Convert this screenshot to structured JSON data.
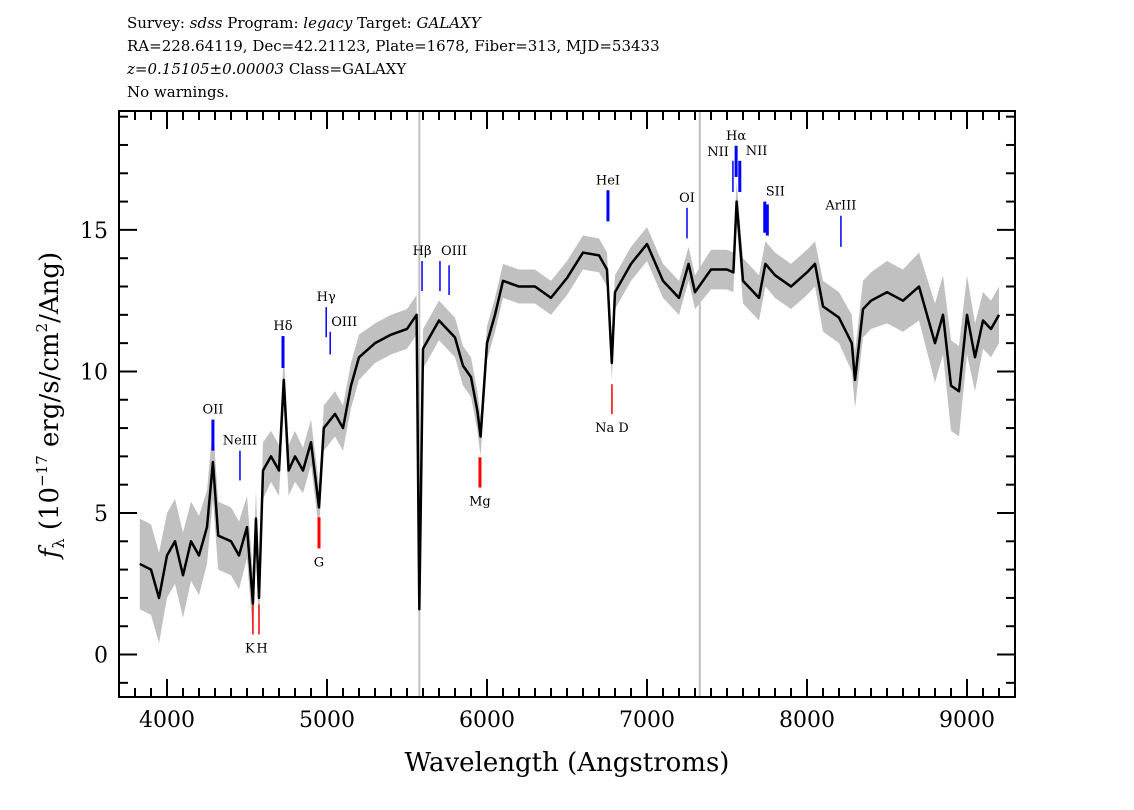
{
  "header": {
    "lines": [
      [
        {
          "text": "Survey: ",
          "italic": false
        },
        {
          "text": "sdss",
          "italic": true
        },
        {
          "text": " Program: ",
          "italic": false
        },
        {
          "text": "legacy",
          "italic": true
        },
        {
          "text": " Target: ",
          "italic": false
        },
        {
          "text": "GALAXY",
          "italic": true
        }
      ],
      [
        {
          "text": "RA=228.64119, Dec=42.21123, Plate=1678, Fiber=313, MJD=53433",
          "italic": false
        }
      ],
      [
        {
          "text": "z=0.15105±0.00003",
          "italic": true
        },
        {
          "text": " Class=GALAXY",
          "italic": false
        }
      ],
      [
        {
          "text": "No warnings.",
          "italic": false
        }
      ]
    ]
  },
  "chart_data": {
    "type": "line",
    "title": "",
    "xlabel": "Wavelength (Angstroms)",
    "ylabel_parts": [
      "f",
      "λ",
      " (10",
      "−17",
      " erg/s/cm",
      "2",
      "/Ang)"
    ],
    "xlim": [
      3700,
      9300
    ],
    "ylim": [
      -1.5,
      19.2
    ],
    "x_major_ticks": [
      4000,
      5000,
      6000,
      7000,
      8000,
      9000
    ],
    "x_minor_step": 100,
    "y_major_ticks": [
      0,
      5,
      10,
      15
    ],
    "y_minor_step": 1,
    "x_tick_labels": [
      "4000",
      "5000",
      "6000",
      "7000",
      "8000",
      "9000"
    ],
    "y_tick_labels": [
      "0",
      "5",
      "10",
      "15"
    ],
    "grid": false,
    "colors": {
      "flux": "#000000",
      "error": "#c0c0c0",
      "emission": "#0000ff",
      "absorption": "#ff0000",
      "sky": "#c0c0c0"
    },
    "series": [
      {
        "wavelength": [
          3830,
          3900,
          3950,
          4000,
          4050,
          4100,
          4150,
          4200,
          4250,
          4287,
          4320,
          4400,
          4450,
          4500,
          4537,
          4556,
          4575,
          4600,
          4650,
          4700,
          4730,
          4760,
          4800,
          4850,
          4900,
          4950,
          4980,
          5050,
          5100,
          5150,
          5200,
          5300,
          5400,
          5500,
          5560,
          5577,
          5600,
          5700,
          5800,
          5850,
          5900,
          5940,
          5960,
          6000,
          6050,
          6100,
          6200,
          6300,
          6400,
          6500,
          6600,
          6700,
          6750,
          6780,
          6800,
          6900,
          7000,
          7100,
          7200,
          7260,
          7300,
          7400,
          7500,
          7540,
          7560,
          7600,
          7700,
          7740,
          7800,
          7900,
          8000,
          8050,
          8100,
          8200,
          8280,
          8300,
          8350,
          8400,
          8500,
          8600,
          8700,
          8800,
          8850,
          8900,
          8950,
          9000,
          9050,
          9100,
          9150,
          9200
        ],
        "flux": [
          3.2,
          3.0,
          2.0,
          3.5,
          4.0,
          2.8,
          4.0,
          3.5,
          4.5,
          6.8,
          4.2,
          4.0,
          3.5,
          4.5,
          1.8,
          4.8,
          2.0,
          6.5,
          7.0,
          6.5,
          9.7,
          6.5,
          7.0,
          6.5,
          7.5,
          5.2,
          8.0,
          8.5,
          8.0,
          9.5,
          10.5,
          11.0,
          11.3,
          11.5,
          12.0,
          1.6,
          10.8,
          11.8,
          11.2,
          10.2,
          9.8,
          8.6,
          7.7,
          11.0,
          12.0,
          13.2,
          13.0,
          13.0,
          12.6,
          13.3,
          14.2,
          14.1,
          13.6,
          10.3,
          12.8,
          13.8,
          14.5,
          13.2,
          12.6,
          13.8,
          12.8,
          13.6,
          13.6,
          13.5,
          16.0,
          13.2,
          12.6,
          13.8,
          13.4,
          13.0,
          13.5,
          13.8,
          12.3,
          11.9,
          11.0,
          9.7,
          12.2,
          12.5,
          12.8,
          12.5,
          13.0,
          11.0,
          12.0,
          9.5,
          9.3,
          12.0,
          10.5,
          11.8,
          11.5,
          12.0
        ],
        "error": [
          1.6,
          1.6,
          1.6,
          1.5,
          1.5,
          1.5,
          1.4,
          1.4,
          1.3,
          1.3,
          1.2,
          1.2,
          1.2,
          1.1,
          1.1,
          1.0,
          1.0,
          1.0,
          0.9,
          0.9,
          0.9,
          0.9,
          0.9,
          0.8,
          0.8,
          0.8,
          0.8,
          0.8,
          0.8,
          0.8,
          0.8,
          0.7,
          0.7,
          0.7,
          0.7,
          0.7,
          0.7,
          0.7,
          0.7,
          0.7,
          0.7,
          0.7,
          0.7,
          0.6,
          0.6,
          0.6,
          0.6,
          0.6,
          0.6,
          0.6,
          0.6,
          0.6,
          0.6,
          0.6,
          0.6,
          0.6,
          0.6,
          0.6,
          0.6,
          0.6,
          0.6,
          0.7,
          0.7,
          0.7,
          0.7,
          0.8,
          0.8,
          0.8,
          0.8,
          0.8,
          0.8,
          0.8,
          0.9,
          0.9,
          1.0,
          1.0,
          1.0,
          1.0,
          1.1,
          1.1,
          1.2,
          1.4,
          1.4,
          1.6,
          1.6,
          1.4,
          1.2,
          1.0,
          1.0,
          1.0
        ]
      }
    ],
    "sky_lines": [
      5577,
      7330
    ],
    "line_markers": [
      {
        "label": "OII",
        "wavelength": 4287,
        "type": "emission",
        "y_top": 8.3,
        "y_bottom": 7.2,
        "label_pos": "above",
        "bold": true
      },
      {
        "label": "NeIII",
        "wavelength": 4456,
        "type": "emission",
        "y_top": 7.2,
        "y_bottom": 6.15,
        "label_pos": "above",
        "bold": false
      },
      {
        "label": "K",
        "wavelength": 4537,
        "type": "absorption",
        "y_top": 1.77,
        "y_bottom": 0.71,
        "label_pos": "below",
        "bold": false
      },
      {
        "label": "H",
        "wavelength": 4575,
        "type": "absorption",
        "y_top": 1.77,
        "y_bottom": 0.71,
        "label_pos": "below",
        "bold": false
      },
      {
        "label": "Hδ",
        "wavelength": 4725,
        "type": "emission",
        "y_top": 11.25,
        "y_bottom": 10.12,
        "label_pos": "above",
        "bold": true
      },
      {
        "label": "G",
        "wavelength": 4950,
        "type": "absorption",
        "y_top": 4.85,
        "y_bottom": 3.75,
        "label_pos": "below",
        "bold": true
      },
      {
        "label": "Hγ",
        "wavelength": 4995,
        "type": "emission",
        "y_top": 12.27,
        "y_bottom": 11.21,
        "label_pos": "above",
        "bold": false
      },
      {
        "label": "OIII",
        "wavelength": 5020,
        "type": "emission",
        "y_top": 11.4,
        "y_bottom": 10.6,
        "label_pos": "above-right",
        "bold": false
      },
      {
        "label": "Hβ",
        "wavelength": 5594,
        "type": "emission",
        "y_top": 13.9,
        "y_bottom": 12.84,
        "label_pos": "above",
        "bold": false
      },
      {
        "label": "OIII",
        "wavelength": 5706,
        "type": "emission",
        "y_top": 13.9,
        "y_bottom": 12.84,
        "label_pos": "above-right",
        "bold": false
      },
      {
        "label": "",
        "wavelength": 5763,
        "type": "emission",
        "y_top": 13.75,
        "y_bottom": 12.7,
        "label_pos": "none",
        "bold": false
      },
      {
        "label": "Mg",
        "wavelength": 5956,
        "type": "absorption",
        "y_top": 6.97,
        "y_bottom": 5.9,
        "label_pos": "below",
        "bold": true
      },
      {
        "label": "HeI",
        "wavelength": 6756,
        "type": "emission",
        "y_top": 16.4,
        "y_bottom": 15.3,
        "label_pos": "above",
        "bold": true
      },
      {
        "label": "Na D",
        "wavelength": 6781,
        "type": "absorption",
        "y_top": 9.55,
        "y_bottom": 8.49,
        "label_pos": "below",
        "bold": false
      },
      {
        "label": "OI",
        "wavelength": 7250,
        "type": "emission",
        "y_top": 15.78,
        "y_bottom": 14.7,
        "label_pos": "above",
        "bold": false
      },
      {
        "label": "NII",
        "wavelength": 7537,
        "type": "emission",
        "y_top": 17.44,
        "y_bottom": 16.34,
        "label_pos": "above-left",
        "bold": false
      },
      {
        "label": "Hα",
        "wavelength": 7557,
        "type": "emission",
        "y_top": 17.97,
        "y_bottom": 16.87,
        "label_pos": "above",
        "bold": true
      },
      {
        "label": "NII",
        "wavelength": 7580,
        "type": "emission",
        "y_top": 17.44,
        "y_bottom": 16.34,
        "label_pos": "above-right",
        "bold": true
      },
      {
        "label": "SII",
        "wavelength": 7736,
        "type": "emission",
        "y_top": 16.0,
        "y_bottom": 14.9,
        "label_pos": "above-right",
        "bold": true
      },
      {
        "label": "",
        "wavelength": 7752,
        "type": "emission",
        "y_top": 15.9,
        "y_bottom": 14.8,
        "label_pos": "none",
        "bold": true
      },
      {
        "label": "ArIII",
        "wavelength": 8212,
        "type": "emission",
        "y_top": 15.5,
        "y_bottom": 14.4,
        "label_pos": "above",
        "bold": false
      }
    ]
  }
}
